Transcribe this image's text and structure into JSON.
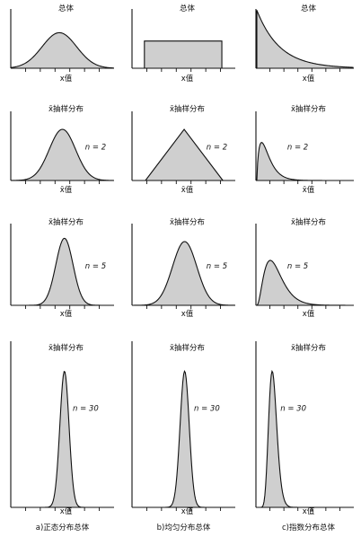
{
  "columns": [
    {
      "caption": "a)正态分布总体",
      "kind": "normal"
    },
    {
      "caption": "b)均匀分布总体",
      "kind": "uniform"
    },
    {
      "caption": "c)指数分布总体",
      "kind": "exponential"
    }
  ],
  "rows": [
    {
      "title": "总体",
      "xlabel": "x值",
      "n_label": ""
    },
    {
      "title": "x̄抽样分布",
      "xlabel": "x̄值",
      "n_label": "n = 2"
    },
    {
      "title": "x̄抽样分布",
      "xlabel": "x值",
      "n_label": "n = 5"
    },
    {
      "title": "x̄抽样分布",
      "xlabel": "x值",
      "n_label": "n = 30"
    }
  ],
  "colors": {
    "fill": "#cfcfcf",
    "stroke": "#111111"
  }
}
